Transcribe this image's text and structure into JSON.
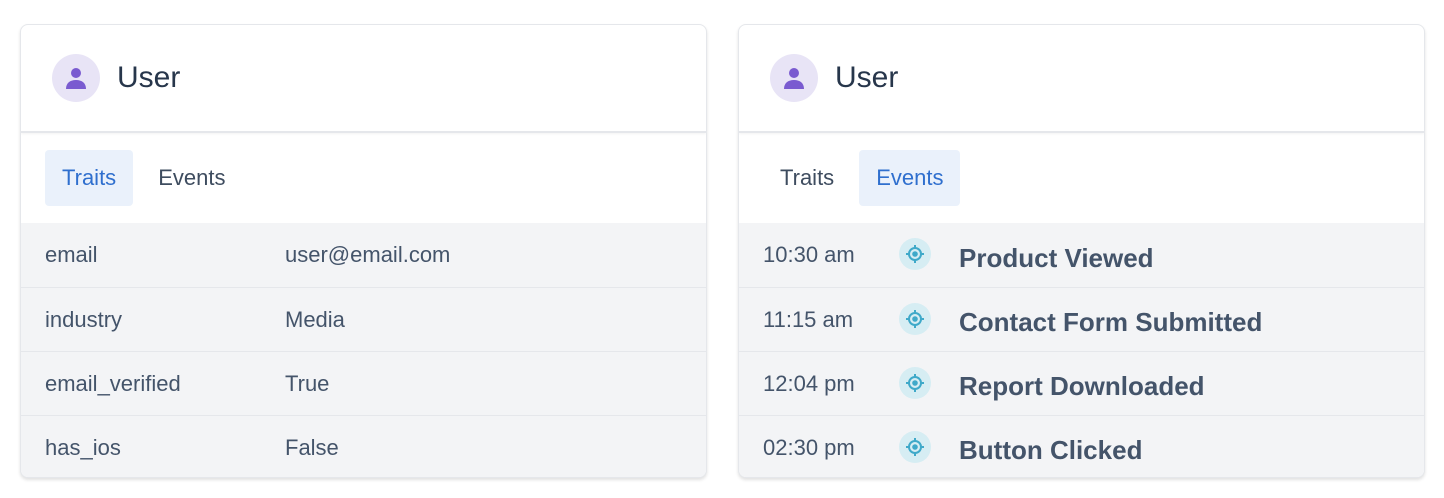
{
  "left": {
    "title": "User",
    "avatar_icon": "user-icon",
    "tabs": [
      {
        "label": "Traits",
        "active": true
      },
      {
        "label": "Events",
        "active": false
      }
    ],
    "traits": [
      {
        "key": "email",
        "value": "user@email.com"
      },
      {
        "key": "industry",
        "value": "Media"
      },
      {
        "key": "email_verified",
        "value": "True"
      },
      {
        "key": "has_ios",
        "value": "False"
      }
    ]
  },
  "right": {
    "title": "User",
    "avatar_icon": "user-icon",
    "tabs": [
      {
        "label": "Traits",
        "active": false
      },
      {
        "label": "Events",
        "active": true
      }
    ],
    "events": [
      {
        "time": "10:30 am",
        "name": "Product Viewed"
      },
      {
        "time": "11:15 am",
        "name": "Contact Form Submitted"
      },
      {
        "time": "12:04 pm",
        "name": "Report Downloaded"
      },
      {
        "time": "02:30 pm",
        "name": "Button Clicked"
      }
    ],
    "event_icon": "target-icon"
  },
  "colors": {
    "accent": "#2f6fce",
    "avatar": "#7a5bd0",
    "event_icon": "#3fa9c9"
  }
}
